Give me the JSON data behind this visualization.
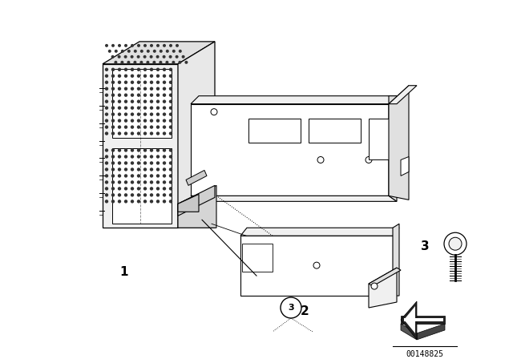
{
  "background_color": "#ffffff",
  "part_number": "00148825",
  "fig_width": 6.4,
  "fig_height": 4.48,
  "dpi": 100,
  "line_color": "#000000",
  "text_color": "#000000",
  "fill_white": "#ffffff",
  "fill_light": "#f0f0f0",
  "fill_mid": "#e0e0e0",
  "dot_color": "#333333"
}
